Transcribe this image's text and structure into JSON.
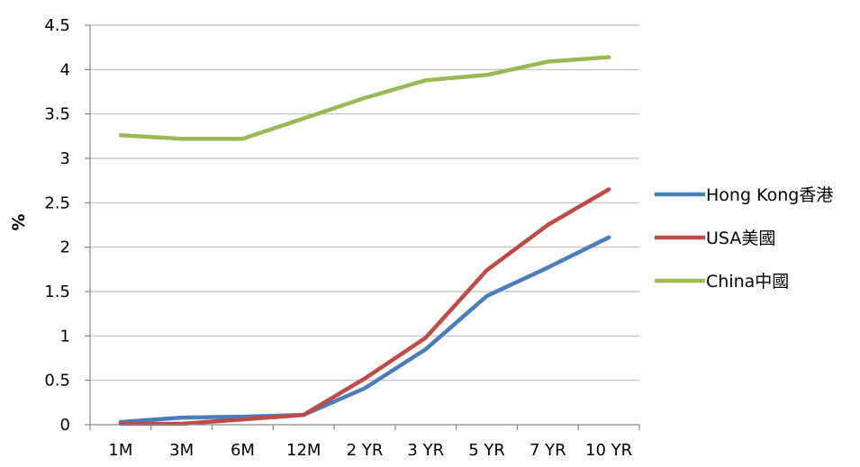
{
  "chart_data": {
    "type": "line",
    "title": "",
    "xlabel": "",
    "ylabel": "%",
    "categories": [
      "1M",
      "3M",
      "6M",
      "12M",
      "2 YR",
      "3 YR",
      "5 YR",
      "7 YR",
      "10 YR"
    ],
    "yticks": [
      "0",
      "0.5",
      "1",
      "1.5",
      "2",
      "2.5",
      "3",
      "3.5",
      "4",
      "4.5"
    ],
    "ylim": [
      0,
      4.5
    ],
    "grid": true,
    "legend_position": "right",
    "series": [
      {
        "name": "Hong Kong香港",
        "color": "#4a7ebb",
        "values": [
          0.03,
          0.08,
          0.09,
          0.11,
          0.41,
          0.85,
          1.45,
          1.77,
          2.11
        ]
      },
      {
        "name": "USA美國",
        "color": "#be4b48",
        "values": [
          0.01,
          0.01,
          0.06,
          0.11,
          0.52,
          0.98,
          1.74,
          2.25,
          2.65
        ]
      },
      {
        "name": "China中國",
        "color": "#98b954",
        "values": [
          3.26,
          3.22,
          3.22,
          3.45,
          3.68,
          3.88,
          3.94,
          4.09,
          4.14
        ]
      }
    ]
  }
}
